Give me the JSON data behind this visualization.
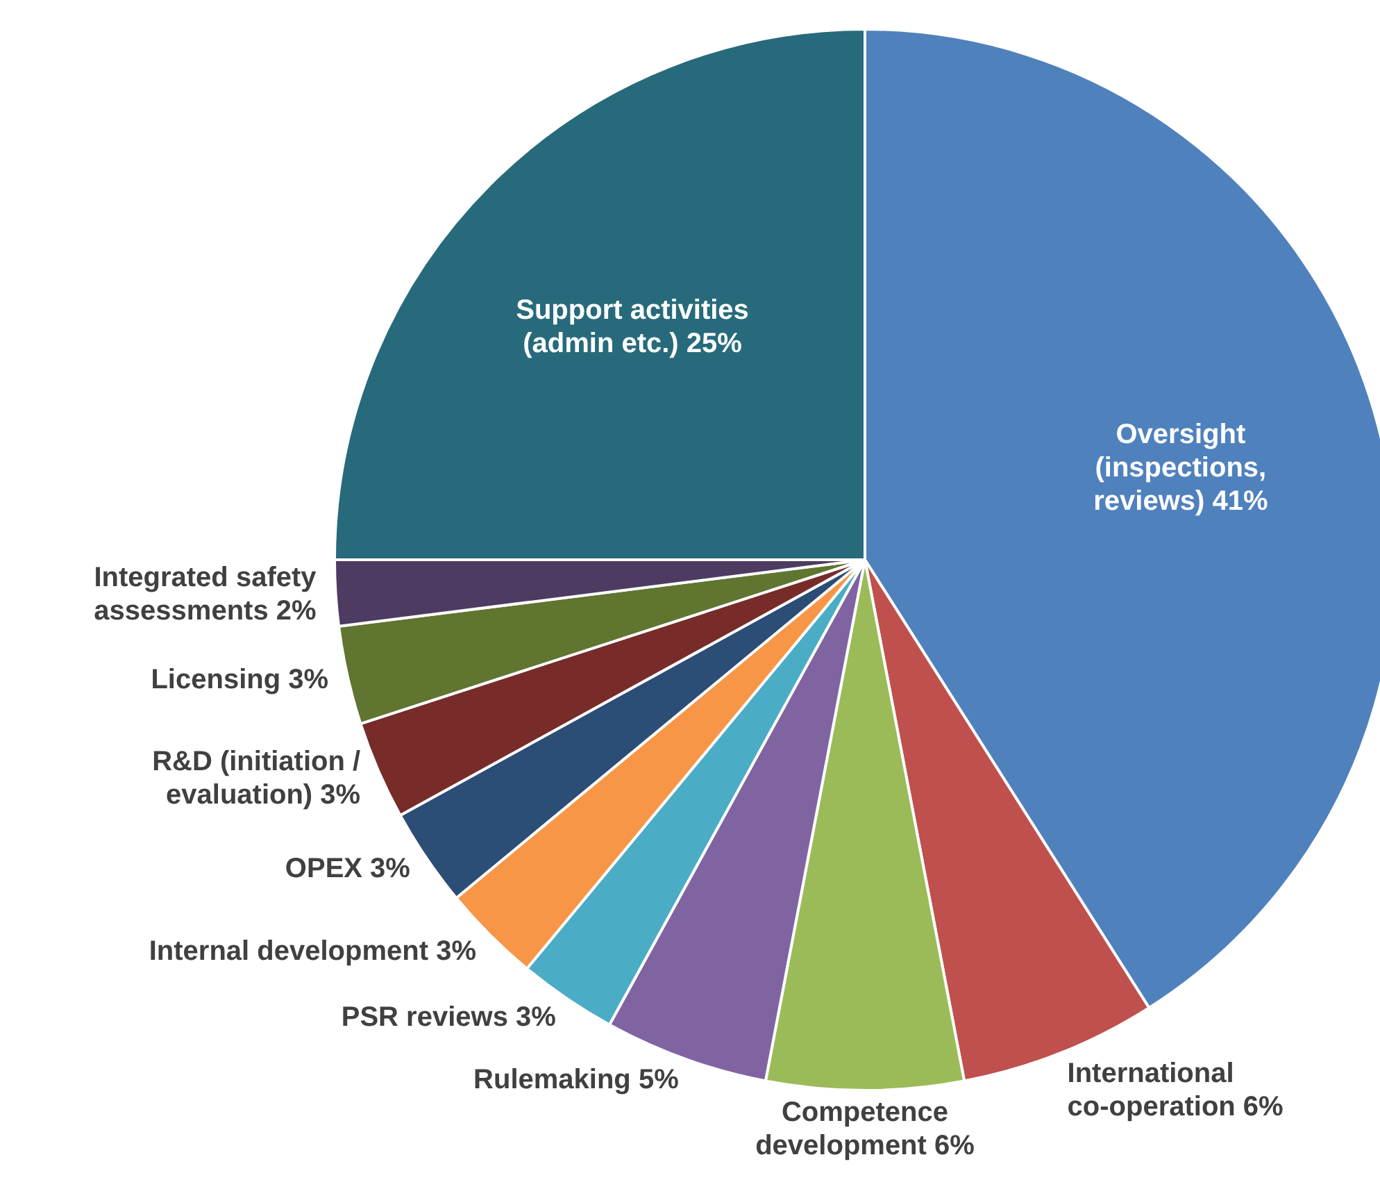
{
  "chart_data": {
    "type": "pie",
    "categories": [
      "Oversight (inspections, reviews)",
      "International co-operation",
      "Competence development",
      "Rulemaking",
      "PSR reviews",
      "Internal development",
      "OPEX",
      "R&D (initiation / evaluation)",
      "Licensing",
      "Integrated safety assessments",
      "Support activities (admin etc.)"
    ],
    "values": [
      41,
      6,
      6,
      5,
      3,
      3,
      3,
      3,
      3,
      2,
      25
    ],
    "value_labels": [
      "41%",
      "6%",
      "6%",
      "5%",
      "3%",
      "3%",
      "3%",
      "3%",
      "3%",
      "2%",
      "25%"
    ],
    "colors": [
      "#4f81bd",
      "#c0504d",
      "#9bbb59",
      "#8064a2",
      "#4bacc6",
      "#f79646",
      "#2c4d75",
      "#772c2a",
      "#5f7530",
      "#4d3b62",
      "#276a7c"
    ]
  }
}
